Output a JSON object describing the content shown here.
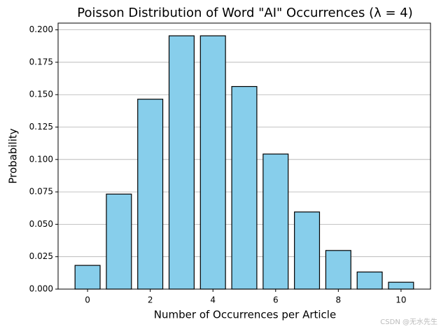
{
  "chart_data": {
    "type": "bar",
    "title": "Poisson Distribution of Word \"AI\" Occurrences (λ = 4)",
    "xlabel": "Number of Occurrences per Article",
    "ylabel": "Probability",
    "x": [
      0,
      1,
      2,
      3,
      4,
      5,
      6,
      7,
      8,
      9,
      10
    ],
    "values": [
      0.0183,
      0.0733,
      0.1465,
      0.1954,
      0.1954,
      0.1563,
      0.1042,
      0.0595,
      0.0298,
      0.0132,
      0.0053
    ],
    "color": "#87ceeb",
    "edgecolor": "#000000",
    "xlim": [
      -0.94,
      10.94
    ],
    "ylim": [
      0,
      0.2052
    ],
    "xticks": [
      0,
      2,
      4,
      6,
      8,
      10
    ],
    "yticks": [
      {
        "value": 0,
        "label": "0.000"
      },
      {
        "value": 0.025,
        "label": "0.025"
      },
      {
        "value": 0.05,
        "label": "0.050"
      },
      {
        "value": 0.075,
        "label": "0.075"
      },
      {
        "value": 0.1,
        "label": "0.100"
      },
      {
        "value": 0.125,
        "label": "0.125"
      },
      {
        "value": 0.15,
        "label": "0.150"
      },
      {
        "value": 0.175,
        "label": "0.175"
      },
      {
        "value": 0.2,
        "label": "0.200"
      }
    ],
    "grid": "y",
    "watermark": "CSDN @无水先生"
  }
}
